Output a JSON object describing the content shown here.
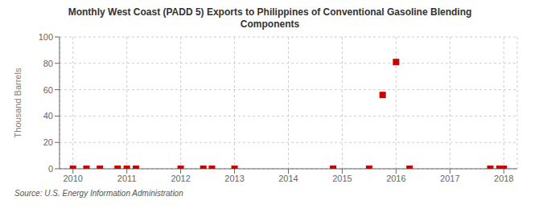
{
  "chart_data": {
    "type": "scatter",
    "title": "Monthly West Coast (PADD 5) Exports to Philippines of Conventional Gasoline Blending\nComponents",
    "ylabel": "Thousand Barrels",
    "annotations": [
      "Source: U.S. Energy Information Administration"
    ],
    "x": [
      2010.0,
      2010.25,
      2010.5,
      2010.83,
      2011.0,
      2011.17,
      2012.0,
      2012.42,
      2012.58,
      2013.0,
      2014.83,
      2015.5,
      2015.75,
      2016.0,
      2016.25,
      2017.75,
      2017.92,
      2018.0
    ],
    "values": [
      0,
      0,
      0,
      0,
      0,
      0,
      0,
      0,
      0,
      0,
      0,
      0,
      56,
      81,
      0,
      0,
      0,
      0
    ],
    "color": "#cc0000",
    "marker": "square",
    "xlim": [
      2009.75,
      2018.25
    ],
    "xticks": [
      2010,
      2011,
      2012,
      2013,
      2014,
      2015,
      2016,
      2017,
      2018
    ],
    "ylim": [
      0,
      100
    ],
    "yticks": [
      0,
      20,
      40,
      60,
      80,
      100
    ],
    "grid": true
  }
}
